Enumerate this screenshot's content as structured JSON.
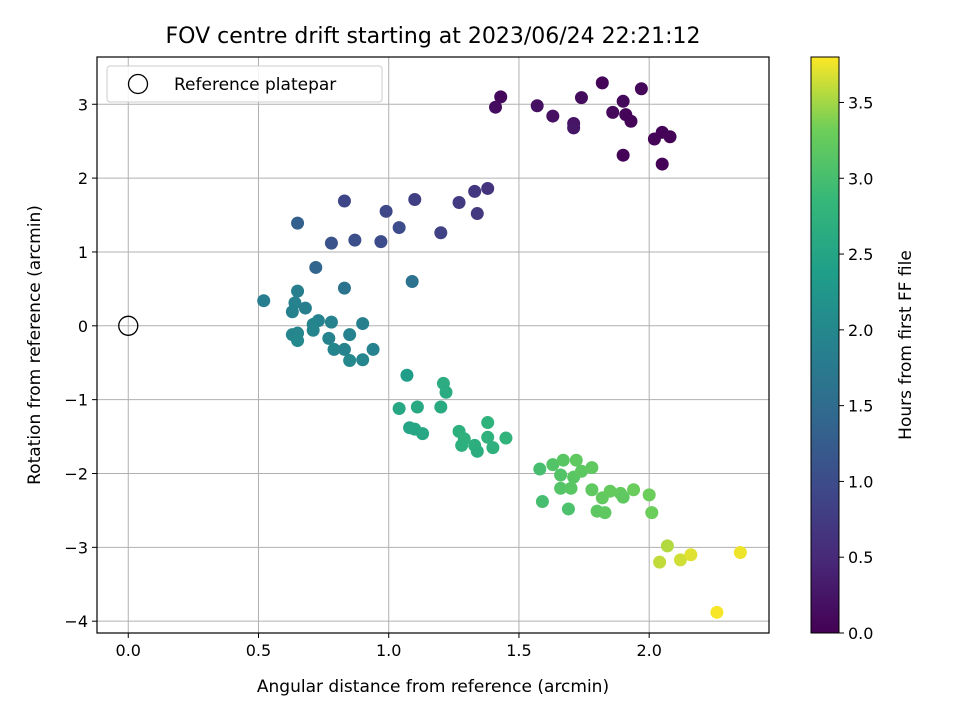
{
  "chart_data": {
    "type": "scatter",
    "title": "FOV centre drift starting at 2023/06/24 22:21:12",
    "xlabel": "Angular distance from reference (arcmin)",
    "ylabel": "Rotation from reference (arcmin)",
    "xlim": [
      -0.12,
      2.46
    ],
    "ylim": [
      -4.16,
      3.64
    ],
    "xticks": [
      0.0,
      0.5,
      1.0,
      1.5,
      2.0
    ],
    "xtick_labels": [
      "0.0",
      "0.5",
      "1.0",
      "1.5",
      "2.0"
    ],
    "yticks": [
      -4,
      -3,
      -2,
      -1,
      0,
      1,
      2,
      3
    ],
    "ytick_labels": [
      "−4",
      "−3",
      "−2",
      "−1",
      "0",
      "1",
      "2",
      "3"
    ],
    "grid": true,
    "legend": {
      "placement": "upper-left",
      "entries": [
        {
          "label": "Reference platepar",
          "marker": "open-circle"
        }
      ]
    },
    "reference_point": {
      "x": 0.0,
      "y": 0.0
    },
    "colorbar": {
      "label": "Hours from first FF file",
      "colormap": "viridis",
      "range": [
        0.0,
        3.8
      ],
      "ticks": [
        0.0,
        0.5,
        1.0,
        1.5,
        2.0,
        2.5,
        3.0,
        3.5
      ],
      "tick_labels": [
        "0.0",
        "0.5",
        "1.0",
        "1.5",
        "2.0",
        "2.5",
        "3.0",
        "3.5"
      ]
    },
    "points": [
      {
        "x": 1.82,
        "y": 3.29,
        "c": 0.05
      },
      {
        "x": 1.97,
        "y": 3.21,
        "c": 0.07
      },
      {
        "x": 1.43,
        "y": 3.1,
        "c": 0.1
      },
      {
        "x": 1.74,
        "y": 3.09,
        "c": 0.12
      },
      {
        "x": 1.9,
        "y": 3.04,
        "c": 0.1
      },
      {
        "x": 1.41,
        "y": 2.96,
        "c": 0.15
      },
      {
        "x": 1.57,
        "y": 2.98,
        "c": 0.18
      },
      {
        "x": 1.86,
        "y": 2.89,
        "c": 0.08
      },
      {
        "x": 1.91,
        "y": 2.86,
        "c": 0.05
      },
      {
        "x": 1.63,
        "y": 2.84,
        "c": 0.2
      },
      {
        "x": 1.93,
        "y": 2.77,
        "c": 0.04
      },
      {
        "x": 1.71,
        "y": 2.74,
        "c": 0.22
      },
      {
        "x": 1.71,
        "y": 2.68,
        "c": 0.25
      },
      {
        "x": 2.05,
        "y": 2.62,
        "c": 0.03
      },
      {
        "x": 2.08,
        "y": 2.56,
        "c": 0.02
      },
      {
        "x": 2.02,
        "y": 2.53,
        "c": 0.04
      },
      {
        "x": 1.9,
        "y": 2.31,
        "c": 0.03
      },
      {
        "x": 2.05,
        "y": 2.19,
        "c": 0.02
      },
      {
        "x": 1.38,
        "y": 1.86,
        "c": 0.65
      },
      {
        "x": 1.33,
        "y": 1.82,
        "c": 0.7
      },
      {
        "x": 1.1,
        "y": 1.71,
        "c": 0.8
      },
      {
        "x": 0.83,
        "y": 1.69,
        "c": 0.9
      },
      {
        "x": 1.27,
        "y": 1.67,
        "c": 0.75
      },
      {
        "x": 0.99,
        "y": 1.55,
        "c": 0.95
      },
      {
        "x": 1.34,
        "y": 1.52,
        "c": 0.72
      },
      {
        "x": 0.65,
        "y": 1.39,
        "c": 1.3
      },
      {
        "x": 1.04,
        "y": 1.33,
        "c": 1.0
      },
      {
        "x": 1.2,
        "y": 1.26,
        "c": 0.85
      },
      {
        "x": 0.87,
        "y": 1.16,
        "c": 1.05
      },
      {
        "x": 0.97,
        "y": 1.14,
        "c": 1.0
      },
      {
        "x": 0.78,
        "y": 1.12,
        "c": 1.1
      },
      {
        "x": 0.72,
        "y": 0.79,
        "c": 1.4
      },
      {
        "x": 1.09,
        "y": 0.6,
        "c": 1.6
      },
      {
        "x": 0.52,
        "y": 0.34,
        "c": 1.8
      },
      {
        "x": 0.65,
        "y": 0.47,
        "c": 1.85
      },
      {
        "x": 0.83,
        "y": 0.51,
        "c": 1.65
      },
      {
        "x": 0.64,
        "y": 0.31,
        "c": 1.9
      },
      {
        "x": 0.68,
        "y": 0.24,
        "c": 1.85
      },
      {
        "x": 0.63,
        "y": 0.19,
        "c": 1.88
      },
      {
        "x": 0.73,
        "y": 0.07,
        "c": 1.9
      },
      {
        "x": 0.71,
        "y": 0.02,
        "c": 1.95
      },
      {
        "x": 0.78,
        "y": 0.05,
        "c": 1.92
      },
      {
        "x": 0.9,
        "y": 0.03,
        "c": 1.85
      },
      {
        "x": 0.71,
        "y": -0.06,
        "c": 1.95
      },
      {
        "x": 0.63,
        "y": -0.12,
        "c": 1.97
      },
      {
        "x": 0.65,
        "y": -0.1,
        "c": 1.96
      },
      {
        "x": 0.85,
        "y": -0.12,
        "c": 1.9
      },
      {
        "x": 0.77,
        "y": -0.17,
        "c": 1.92
      },
      {
        "x": 0.65,
        "y": -0.2,
        "c": 2.0
      },
      {
        "x": 0.79,
        "y": -0.32,
        "c": 1.95
      },
      {
        "x": 0.83,
        "y": -0.32,
        "c": 1.92
      },
      {
        "x": 0.94,
        "y": -0.32,
        "c": 1.9
      },
      {
        "x": 0.85,
        "y": -0.47,
        "c": 2.0
      },
      {
        "x": 0.9,
        "y": -0.46,
        "c": 1.98
      },
      {
        "x": 1.07,
        "y": -0.67,
        "c": 2.35
      },
      {
        "x": 1.21,
        "y": -0.78,
        "c": 2.65
      },
      {
        "x": 1.22,
        "y": -0.9,
        "c": 2.62
      },
      {
        "x": 1.04,
        "y": -1.12,
        "c": 2.55
      },
      {
        "x": 1.11,
        "y": -1.1,
        "c": 2.58
      },
      {
        "x": 1.2,
        "y": -1.1,
        "c": 2.6
      },
      {
        "x": 1.08,
        "y": -1.38,
        "c": 2.5
      },
      {
        "x": 1.1,
        "y": -1.4,
        "c": 2.52
      },
      {
        "x": 1.13,
        "y": -1.46,
        "c": 2.55
      },
      {
        "x": 1.27,
        "y": -1.43,
        "c": 2.7
      },
      {
        "x": 1.38,
        "y": -1.31,
        "c": 2.75
      },
      {
        "x": 1.29,
        "y": -1.53,
        "c": 2.72
      },
      {
        "x": 1.28,
        "y": -1.62,
        "c": 2.7
      },
      {
        "x": 1.33,
        "y": -1.62,
        "c": 2.68
      },
      {
        "x": 1.38,
        "y": -1.51,
        "c": 2.74
      },
      {
        "x": 1.45,
        "y": -1.52,
        "c": 2.78
      },
      {
        "x": 1.34,
        "y": -1.7,
        "c": 2.66
      },
      {
        "x": 1.4,
        "y": -1.65,
        "c": 2.72
      },
      {
        "x": 1.58,
        "y": -1.94,
        "c": 3.0
      },
      {
        "x": 1.63,
        "y": -1.88,
        "c": 3.1
      },
      {
        "x": 1.67,
        "y": -1.82,
        "c": 3.15
      },
      {
        "x": 1.72,
        "y": -1.82,
        "c": 3.2
      },
      {
        "x": 1.66,
        "y": -2.02,
        "c": 3.1
      },
      {
        "x": 1.71,
        "y": -2.05,
        "c": 3.15
      },
      {
        "x": 1.74,
        "y": -1.97,
        "c": 3.18
      },
      {
        "x": 1.78,
        "y": -1.92,
        "c": 3.2
      },
      {
        "x": 1.66,
        "y": -2.2,
        "c": 3.12
      },
      {
        "x": 1.7,
        "y": -2.2,
        "c": 3.15
      },
      {
        "x": 1.59,
        "y": -2.38,
        "c": 3.0
      },
      {
        "x": 1.69,
        "y": -2.48,
        "c": 3.05
      },
      {
        "x": 1.78,
        "y": -2.22,
        "c": 3.2
      },
      {
        "x": 1.82,
        "y": -2.33,
        "c": 3.22
      },
      {
        "x": 1.85,
        "y": -2.24,
        "c": 3.25
      },
      {
        "x": 1.89,
        "y": -2.27,
        "c": 3.25
      },
      {
        "x": 1.9,
        "y": -2.32,
        "c": 3.2
      },
      {
        "x": 1.94,
        "y": -2.22,
        "c": 3.28
      },
      {
        "x": 1.8,
        "y": -2.51,
        "c": 3.18
      },
      {
        "x": 1.83,
        "y": -2.53,
        "c": 3.2
      },
      {
        "x": 2.0,
        "y": -2.29,
        "c": 3.3
      },
      {
        "x": 2.01,
        "y": -2.53,
        "c": 3.3
      },
      {
        "x": 2.07,
        "y": -2.98,
        "c": 3.55
      },
      {
        "x": 2.04,
        "y": -3.2,
        "c": 3.6
      },
      {
        "x": 2.12,
        "y": -3.17,
        "c": 3.65
      },
      {
        "x": 2.16,
        "y": -3.1,
        "c": 3.7
      },
      {
        "x": 2.35,
        "y": -3.07,
        "c": 3.75
      },
      {
        "x": 2.26,
        "y": -3.88,
        "c": 3.78
      }
    ]
  }
}
